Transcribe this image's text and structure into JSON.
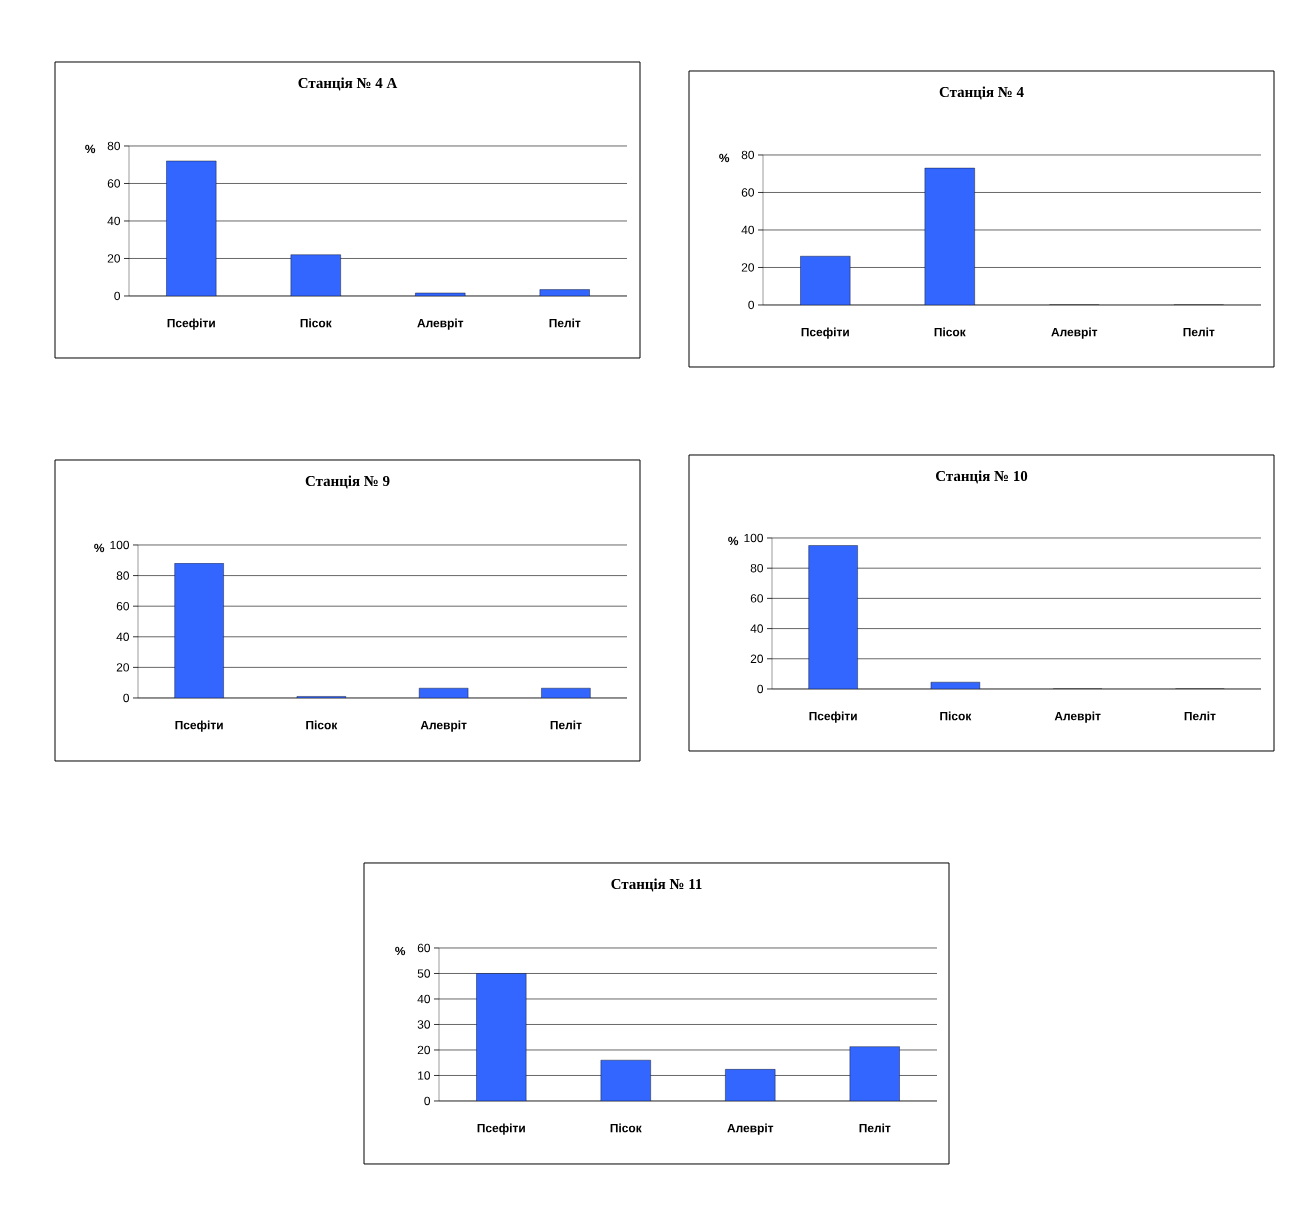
{
  "chart_data": [
    {
      "type": "bar",
      "title": "Станція № 4 А",
      "ylabel": "%",
      "categories": [
        "Псефіти",
        "Пісок",
        "Алевріт",
        "Пеліт"
      ],
      "values": [
        72,
        22,
        1.6,
        3.4
      ],
      "color": "#3366ff",
      "ylim": [
        0,
        80
      ],
      "yticks": [
        0,
        20,
        40,
        60,
        80
      ],
      "grid": "y"
    },
    {
      "type": "bar",
      "title": "Станція № 4",
      "ylabel": "%",
      "categories": [
        "Псефіти",
        "Пісок",
        "Алевріт",
        "Пеліт"
      ],
      "values": [
        26,
        73,
        0,
        0
      ],
      "color": "#3366ff",
      "ylim": [
        0,
        80
      ],
      "yticks": [
        0,
        20,
        40,
        60,
        80
      ],
      "grid": "y"
    },
    {
      "type": "bar",
      "title": "Станція № 9",
      "ylabel": "%",
      "categories": [
        "Псефіти",
        "Пісок",
        "Алевріт",
        "Пеліт"
      ],
      "values": [
        88,
        1,
        6.4,
        6.4
      ],
      "color": "#3366ff",
      "ylim": [
        0,
        100
      ],
      "yticks": [
        0,
        20,
        40,
        60,
        80,
        100
      ],
      "grid": "y"
    },
    {
      "type": "bar",
      "title": "Станція № 10",
      "ylabel": "%",
      "categories": [
        "Псефіти",
        "Пісок",
        "Алевріт",
        "Пеліт"
      ],
      "values": [
        95,
        4.5,
        0,
        0
      ],
      "color": "#3366ff",
      "ylim": [
        0,
        100
      ],
      "yticks": [
        0,
        20,
        40,
        60,
        80,
        100
      ],
      "grid": "y"
    },
    {
      "type": "bar",
      "title": "Станція № 11",
      "ylabel": "%",
      "categories": [
        "Псефіти",
        "Пісок",
        "Алевріт",
        "Пеліт"
      ],
      "values": [
        50,
        16,
        12.4,
        21.3
      ],
      "color": "#3366ff",
      "ylim": [
        0,
        60
      ],
      "yticks": [
        0,
        10,
        20,
        30,
        40,
        50,
        60
      ],
      "grid": "y"
    }
  ]
}
